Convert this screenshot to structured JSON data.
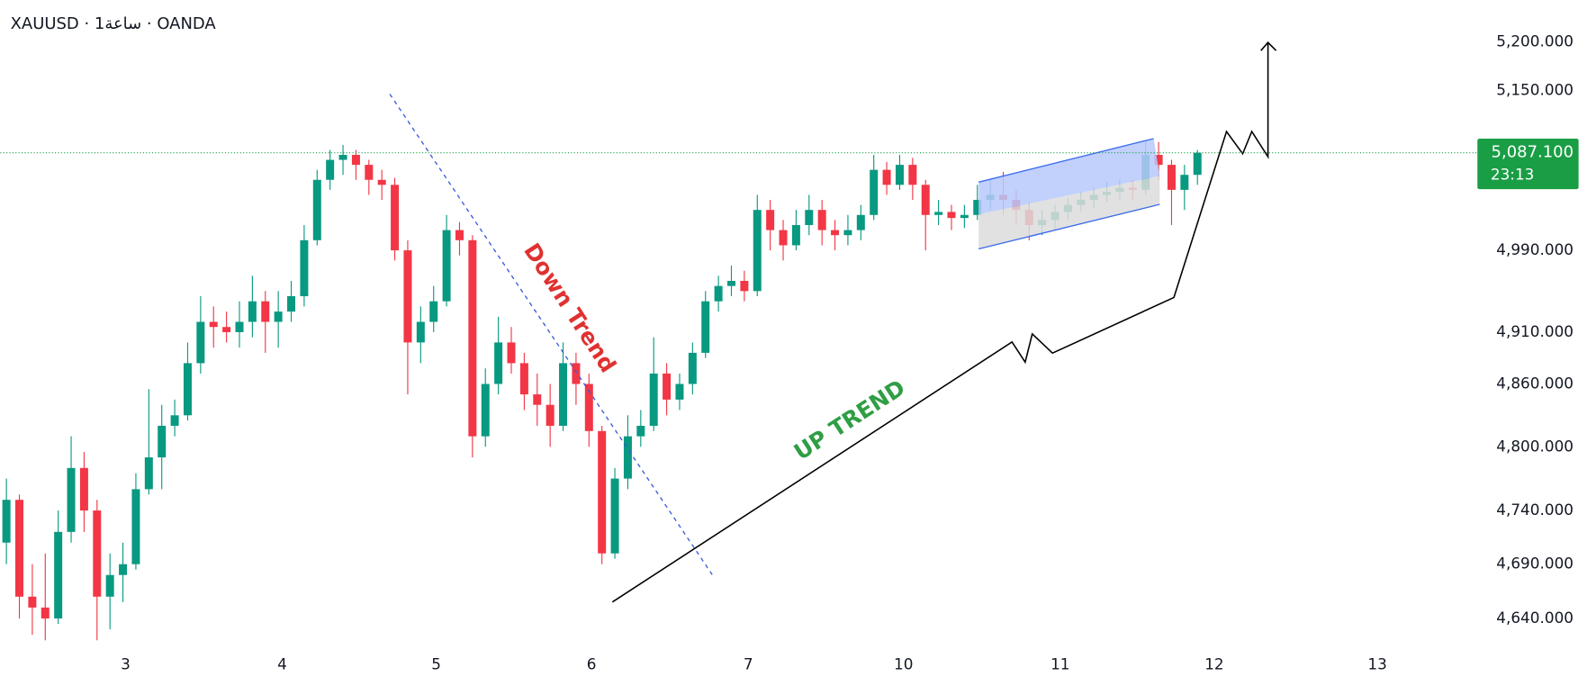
{
  "chart_data": {
    "type": "candlestick",
    "title": "XAUUSD · 1ساعة · OANDA",
    "log": true,
    "up_color": "#089981",
    "down_color": "#f23645",
    "ylim": [
      4618,
      5243
    ],
    "yticks": [
      {
        "value": 5200,
        "label": "5,200.000"
      },
      {
        "value": 5150,
        "label": "5,150.000"
      },
      {
        "value": 4990,
        "label": "4,990.000"
      },
      {
        "value": 4910,
        "label": "4,910.000"
      },
      {
        "value": 4860,
        "label": "4,860.000"
      },
      {
        "value": 4800,
        "label": "4,800.000"
      },
      {
        "value": 4740,
        "label": "4,740.000"
      },
      {
        "value": 4690,
        "label": "4,690.000"
      },
      {
        "value": 4640,
        "label": "4,640.000"
      }
    ],
    "xlim": [
      -0.47,
      110.5
    ],
    "xticks": [
      {
        "value": 9.2,
        "label": "3"
      },
      {
        "value": 21.3,
        "label": "4"
      },
      {
        "value": 33.2,
        "label": "5"
      },
      {
        "value": 45.2,
        "label": "6"
      },
      {
        "value": 57.3,
        "label": "7"
      },
      {
        "value": 69.3,
        "label": "10"
      },
      {
        "value": 81.4,
        "label": "11"
      },
      {
        "value": 93.3,
        "label": "12"
      },
      {
        "value": 105.9,
        "label": "13"
      }
    ],
    "last_price": {
      "value": 5087.1,
      "label": "5,087.100"
    },
    "last_price_color": "#1a9e45",
    "countdown": "23:13",
    "annotations": [
      "Down Trend",
      "UP TREND"
    ],
    "ohlc": [
      [
        4710,
        4770,
        4690,
        4750
      ],
      [
        4750,
        4755,
        4640,
        4660
      ],
      [
        4660,
        4690,
        4625,
        4650
      ],
      [
        4650,
        4700,
        4620,
        4640
      ],
      [
        4640,
        4740,
        4635,
        4720
      ],
      [
        4720,
        4810,
        4710,
        4780
      ],
      [
        4780,
        4795,
        4720,
        4740
      ],
      [
        4740,
        4750,
        4620,
        4660
      ],
      [
        4660,
        4700,
        4630,
        4680
      ],
      [
        4680,
        4710,
        4655,
        4690
      ],
      [
        4690,
        4775,
        4685,
        4760
      ],
      [
        4760,
        4855,
        4755,
        4790
      ],
      [
        4790,
        4840,
        4760,
        4820
      ],
      [
        4820,
        4845,
        4810,
        4830
      ],
      [
        4830,
        4900,
        4825,
        4880
      ],
      [
        4880,
        4945,
        4870,
        4920
      ],
      [
        4920,
        4935,
        4895,
        4915
      ],
      [
        4915,
        4930,
        4900,
        4910
      ],
      [
        4910,
        4940,
        4895,
        4920
      ],
      [
        4920,
        4965,
        4905,
        4940
      ],
      [
        4940,
        4950,
        4890,
        4920
      ],
      [
        4920,
        4950,
        4895,
        4930
      ],
      [
        4930,
        4960,
        4920,
        4945
      ],
      [
        4945,
        5015,
        4935,
        5000
      ],
      [
        5000,
        5070,
        4995,
        5060
      ],
      [
        5060,
        5090,
        5050,
        5080
      ],
      [
        5080,
        5095,
        5065,
        5085
      ],
      [
        5085,
        5090,
        5060,
        5075
      ],
      [
        5075,
        5080,
        5045,
        5060
      ],
      [
        5060,
        5070,
        5040,
        5055
      ],
      [
        5055,
        5062,
        4980,
        4990
      ],
      [
        4990,
        5000,
        4850,
        4900
      ],
      [
        4900,
        4935,
        4880,
        4920
      ],
      [
        4920,
        4955,
        4910,
        4940
      ],
      [
        4940,
        5025,
        4935,
        5010
      ],
      [
        5010,
        5018,
        4985,
        5000
      ],
      [
        5000,
        5005,
        4790,
        4810
      ],
      [
        4810,
        4875,
        4800,
        4860
      ],
      [
        4860,
        4925,
        4850,
        4900
      ],
      [
        4900,
        4915,
        4870,
        4880
      ],
      [
        4880,
        4890,
        4835,
        4850
      ],
      [
        4850,
        4870,
        4820,
        4840
      ],
      [
        4840,
        4860,
        4800,
        4820
      ],
      [
        4820,
        4900,
        4815,
        4880
      ],
      [
        4880,
        4890,
        4840,
        4860
      ],
      [
        4860,
        4870,
        4800,
        4815
      ],
      [
        4815,
        4820,
        4690,
        4700
      ],
      [
        4700,
        4780,
        4695,
        4770
      ],
      [
        4770,
        4830,
        4760,
        4810
      ],
      [
        4810,
        4835,
        4800,
        4820
      ],
      [
        4820,
        4905,
        4815,
        4870
      ],
      [
        4870,
        4880,
        4830,
        4845
      ],
      [
        4845,
        4870,
        4835,
        4860
      ],
      [
        4860,
        4900,
        4850,
        4890
      ],
      [
        4890,
        4950,
        4885,
        4940
      ],
      [
        4940,
        4965,
        4930,
        4955
      ],
      [
        4955,
        4975,
        4945,
        4960
      ],
      [
        4960,
        4970,
        4940,
        4950
      ],
      [
        4950,
        5045,
        4945,
        5030
      ],
      [
        5030,
        5040,
        4990,
        5010
      ],
      [
        5010,
        5020,
        4980,
        4995
      ],
      [
        4995,
        5030,
        4990,
        5015
      ],
      [
        5015,
        5045,
        5005,
        5030
      ],
      [
        5030,
        5040,
        4995,
        5010
      ],
      [
        5010,
        5020,
        4990,
        5005
      ],
      [
        5005,
        5025,
        4995,
        5010
      ],
      [
        5010,
        5035,
        5000,
        5025
      ],
      [
        5025,
        5085,
        5020,
        5070
      ],
      [
        5070,
        5078,
        5045,
        5055
      ],
      [
        5055,
        5085,
        5050,
        5075
      ],
      [
        5075,
        5082,
        5040,
        5055
      ],
      [
        5055,
        5060,
        4990,
        5025
      ],
      [
        5025,
        5040,
        5015,
        5028
      ],
      [
        5028,
        5035,
        5010,
        5022
      ],
      [
        5022,
        5035,
        5012,
        5025
      ],
      [
        5025,
        5055,
        5020,
        5040
      ],
      [
        5040,
        5060,
        5030,
        5045
      ],
      [
        5045,
        5068,
        5025,
        5040
      ],
      [
        5040,
        5050,
        5015,
        5030
      ],
      [
        5030,
        5038,
        5000,
        5015
      ],
      [
        5015,
        5030,
        5005,
        5020
      ],
      [
        5020,
        5035,
        5010,
        5028
      ],
      [
        5028,
        5042,
        5020,
        5035
      ],
      [
        5035,
        5048,
        5028,
        5040
      ],
      [
        5040,
        5052,
        5032,
        5045
      ],
      [
        5045,
        5058,
        5038,
        5048
      ],
      [
        5048,
        5060,
        5040,
        5052
      ],
      [
        5052,
        5060,
        5040,
        5050
      ],
      [
        5050,
        5100,
        5045,
        5085
      ],
      [
        5085,
        5098,
        5060,
        5075
      ],
      [
        5075,
        5080,
        5015,
        5050
      ],
      [
        5050,
        5075,
        5030,
        5065
      ],
      [
        5065,
        5090,
        5055,
        5087.1
      ]
    ]
  }
}
